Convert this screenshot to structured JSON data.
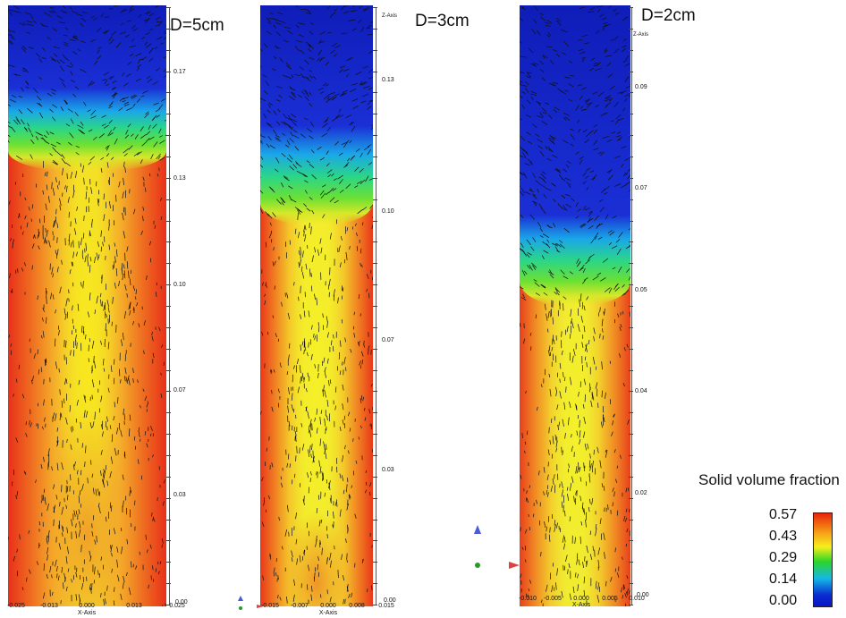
{
  "panels": [
    {
      "label": "D=5cm",
      "z_ticks": [
        "0.17",
        "0.13",
        "0.10",
        "0.07",
        "0.03",
        "0.00"
      ],
      "x_ticks": [
        "-0.025",
        "-0.013",
        "0.000",
        "0.013",
        "0.025"
      ],
      "x_axis_title": "X-Axis"
    },
    {
      "label": "D=3cm",
      "z_axis_title": "Z-Axis",
      "z_ticks": [
        "0.13",
        "0.10",
        "0.07",
        "0.03",
        "0.00"
      ],
      "x_ticks": [
        "-0.015",
        "-0.007",
        "0.000",
        "0.008",
        "0.015"
      ],
      "x_axis_title": "X-Axis"
    },
    {
      "label": "D=2cm",
      "z_axis_title": "Z-Axis",
      "z_ticks": [
        "0.09",
        "0.07",
        "0.05",
        "0.04",
        "0.02",
        "0.00"
      ],
      "x_ticks": [
        "-0.010",
        "-0.005",
        "0.000",
        "0.005",
        "0.010"
      ],
      "x_axis_title": "X-Axis"
    }
  ],
  "legend": {
    "title": "Solid volume fraction",
    "values": [
      "0.57",
      "0.43",
      "0.29",
      "0.14",
      "0.00"
    ],
    "colors": [
      "#e8250c",
      "#f5ef1b",
      "#2bd52a",
      "#14b8e6",
      "#0a16c8"
    ]
  }
}
